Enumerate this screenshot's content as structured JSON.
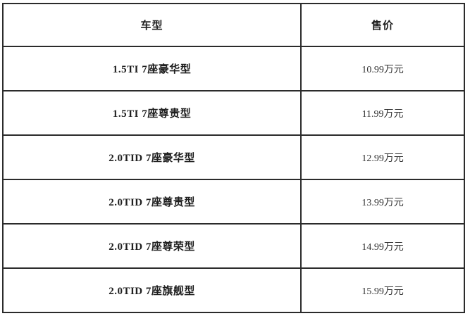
{
  "chart_data": {
    "type": "table",
    "title": "",
    "columns": [
      "车型",
      "售价"
    ],
    "rows": [
      [
        "1.5TI 7座豪华型",
        "10.99万元"
      ],
      [
        "1.5TI 7座尊贵型",
        "11.99万元"
      ],
      [
        "2.0TID 7座豪华型",
        "12.99万元"
      ],
      [
        "2.0TID 7座尊贵型",
        "13.99万元"
      ],
      [
        "2.0TID 7座尊荣型",
        "14.99万元"
      ],
      [
        "2.0TID 7座旗舰型",
        "15.99万元"
      ]
    ],
    "prices_wan_yuan": [
      10.99,
      11.99,
      12.99,
      13.99,
      14.99,
      15.99
    ],
    "layout": {
      "column_align": [
        "center",
        "center"
      ],
      "header_bold": true,
      "model_column_bold": true,
      "grid": "full-borders"
    }
  },
  "colors": {
    "border": "#2b2b2b",
    "model_text": "#1f1f1f",
    "price_text": "#333333",
    "background": "#ffffff"
  }
}
